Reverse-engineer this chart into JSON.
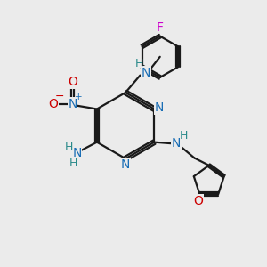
{
  "bg_color": "#ebebeb",
  "bond_color": "#1a1a1a",
  "N_color": "#1a6eb5",
  "O_color": "#cc0000",
  "F_color": "#cc00cc",
  "H_color": "#2a8a8a",
  "figsize": [
    3.0,
    3.0
  ],
  "dpi": 100,
  "xlim": [
    0,
    10
  ],
  "ylim": [
    0,
    10
  ]
}
